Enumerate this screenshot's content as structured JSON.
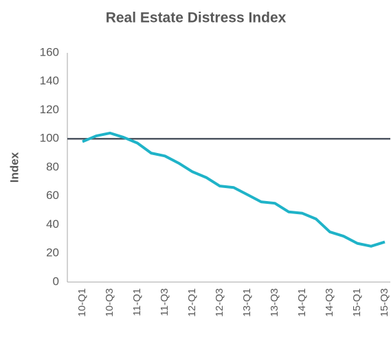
{
  "chart_data": {
    "type": "line",
    "title": "Real Estate Distress Index",
    "y_label": "Index",
    "categories": [
      "10-Q1",
      null,
      "10-Q3",
      null,
      "11-Q1",
      null,
      "11-Q3",
      null,
      "12-Q1",
      null,
      "12-Q3",
      null,
      "13-Q1",
      null,
      "13-Q3",
      null,
      "14-Q1",
      null,
      "14-Q3",
      null,
      "15-Q1",
      null,
      "15-Q3"
    ],
    "series": [
      {
        "name": "Index",
        "color": "#1fb3c8",
        "values": [
          98,
          102,
          104,
          101,
          97,
          90,
          88,
          83,
          77,
          73,
          67,
          66,
          61,
          56,
          55,
          49,
          48,
          44,
          35,
          32,
          27,
          25,
          28
        ]
      }
    ],
    "reference_line": 100,
    "reference_color": "#4d5560",
    "ylim": [
      0,
      160
    ],
    "yticks": [
      0,
      20,
      40,
      60,
      80,
      100,
      120,
      140,
      160
    ],
    "grid": false
  }
}
